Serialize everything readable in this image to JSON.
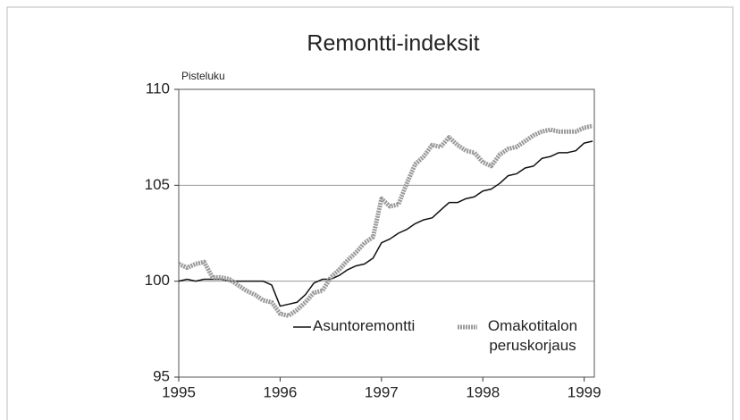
{
  "chart_data": {
    "type": "line",
    "title": "Remontti-indeksit",
    "y_label": "Pisteluku",
    "x": [
      1995.0,
      1995.083,
      1995.167,
      1995.25,
      1995.333,
      1995.417,
      1995.5,
      1995.583,
      1995.667,
      1995.75,
      1995.833,
      1995.917,
      1996.0,
      1996.083,
      1996.167,
      1996.25,
      1996.333,
      1996.417,
      1996.5,
      1996.583,
      1996.667,
      1996.75,
      1996.833,
      1996.917,
      1997.0,
      1997.083,
      1997.167,
      1997.25,
      1997.333,
      1997.417,
      1997.5,
      1997.583,
      1997.667,
      1997.75,
      1997.833,
      1997.917,
      1998.0,
      1998.083,
      1998.167,
      1998.25,
      1998.333,
      1998.417,
      1998.5,
      1998.583,
      1998.667,
      1998.75,
      1998.833,
      1998.917,
      1999.0,
      1999.083
    ],
    "series": [
      {
        "name": "Asuntoremontti",
        "color": "#111111",
        "values": [
          100.0,
          100.1,
          100.0,
          100.1,
          100.1,
          100.1,
          100.0,
          100.0,
          100.0,
          100.0,
          100.0,
          99.8,
          98.7,
          98.8,
          98.9,
          99.3,
          99.9,
          100.1,
          100.1,
          100.3,
          100.6,
          100.8,
          100.9,
          101.2,
          102.0,
          102.2,
          102.5,
          102.7,
          103.0,
          103.2,
          103.3,
          103.7,
          104.1,
          104.1,
          104.3,
          104.4,
          104.7,
          104.8,
          105.1,
          105.5,
          105.6,
          105.9,
          106.0,
          106.4,
          106.5,
          106.7,
          106.7,
          106.8,
          107.2,
          107.3
        ]
      },
      {
        "name": "Omakotitalon peruskorjaus",
        "color": "#9a9a9a",
        "values": [
          100.9,
          100.7,
          100.9,
          101.0,
          100.2,
          100.2,
          100.1,
          99.8,
          99.5,
          99.3,
          99.0,
          98.9,
          98.3,
          98.2,
          98.5,
          98.9,
          99.4,
          99.5,
          100.2,
          100.6,
          101.1,
          101.5,
          102.0,
          102.3,
          104.3,
          103.9,
          104.0,
          105.1,
          106.1,
          106.5,
          107.1,
          107.0,
          107.5,
          107.1,
          106.8,
          106.7,
          106.2,
          106.0,
          106.6,
          106.9,
          107.0,
          107.3,
          107.6,
          107.8,
          107.9,
          107.8,
          107.8,
          107.8,
          108.0,
          108.1
        ]
      }
    ],
    "xlim": [
      1995,
      1999.1
    ],
    "xticks": [
      1995,
      1996,
      1997,
      1998,
      1999
    ],
    "ylim": [
      95,
      110
    ],
    "yticks": [
      95,
      100,
      105,
      110
    ],
    "grid": true
  }
}
